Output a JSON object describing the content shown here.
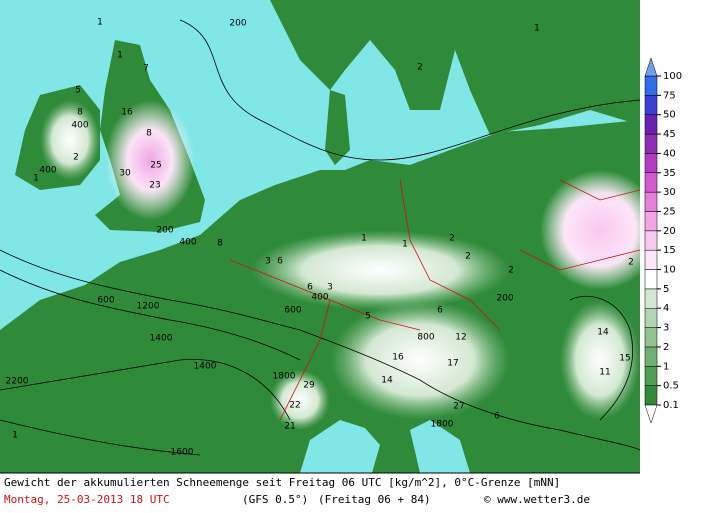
{
  "legend": {
    "levels": [
      0.1,
      0.5,
      1,
      2,
      3,
      4,
      5,
      10,
      15,
      20,
      25,
      30,
      35,
      40,
      45,
      50,
      75,
      100
    ],
    "band_colors": [
      "#2f8a3a",
      "#4f9e56",
      "#6eb172",
      "#8fc390",
      "#b0d5b0",
      "#d3e8d2",
      "#ffffff",
      "#fde6f8",
      "#f8c8f0",
      "#f2a6e6",
      "#e67fdb",
      "#d25ccf",
      "#b43dc2",
      "#8f2cb5",
      "#6a23b0",
      "#3a3fd8",
      "#2e6ee8"
    ],
    "below_color": "#ffffff",
    "above_color": "#6fa0f0"
  },
  "caption": {
    "line1": "Gewicht der akkumulierten Schneemenge seit Freitag 06 UTC [kg/m^2], 0°C-Grenze [mNN]",
    "date": "Montag, 25-03-2013  18 UTC",
    "model": "(GFS 0.5°)",
    "run": "(Freitag 06 + 84)",
    "copyright": "© www.wetter3.de"
  },
  "map_labels": [
    "200",
    "1",
    "1",
    "7",
    "2",
    "1",
    "400",
    "5",
    "8",
    "16",
    "8",
    "25",
    "30",
    "23",
    "2",
    "400",
    "1",
    "200",
    "400",
    "8",
    "1",
    "1",
    "2",
    "2",
    "2",
    "200",
    "3",
    "6",
    "6",
    "3",
    "400",
    "600",
    "1200",
    "1400",
    "1400",
    "1600",
    "2200",
    "1",
    "5",
    "6",
    "12",
    "17",
    "14",
    "16",
    "27",
    "29",
    "22",
    "21",
    "6",
    "14",
    "15",
    "11",
    "2",
    "600",
    "800",
    "1800",
    "1800"
  ]
}
